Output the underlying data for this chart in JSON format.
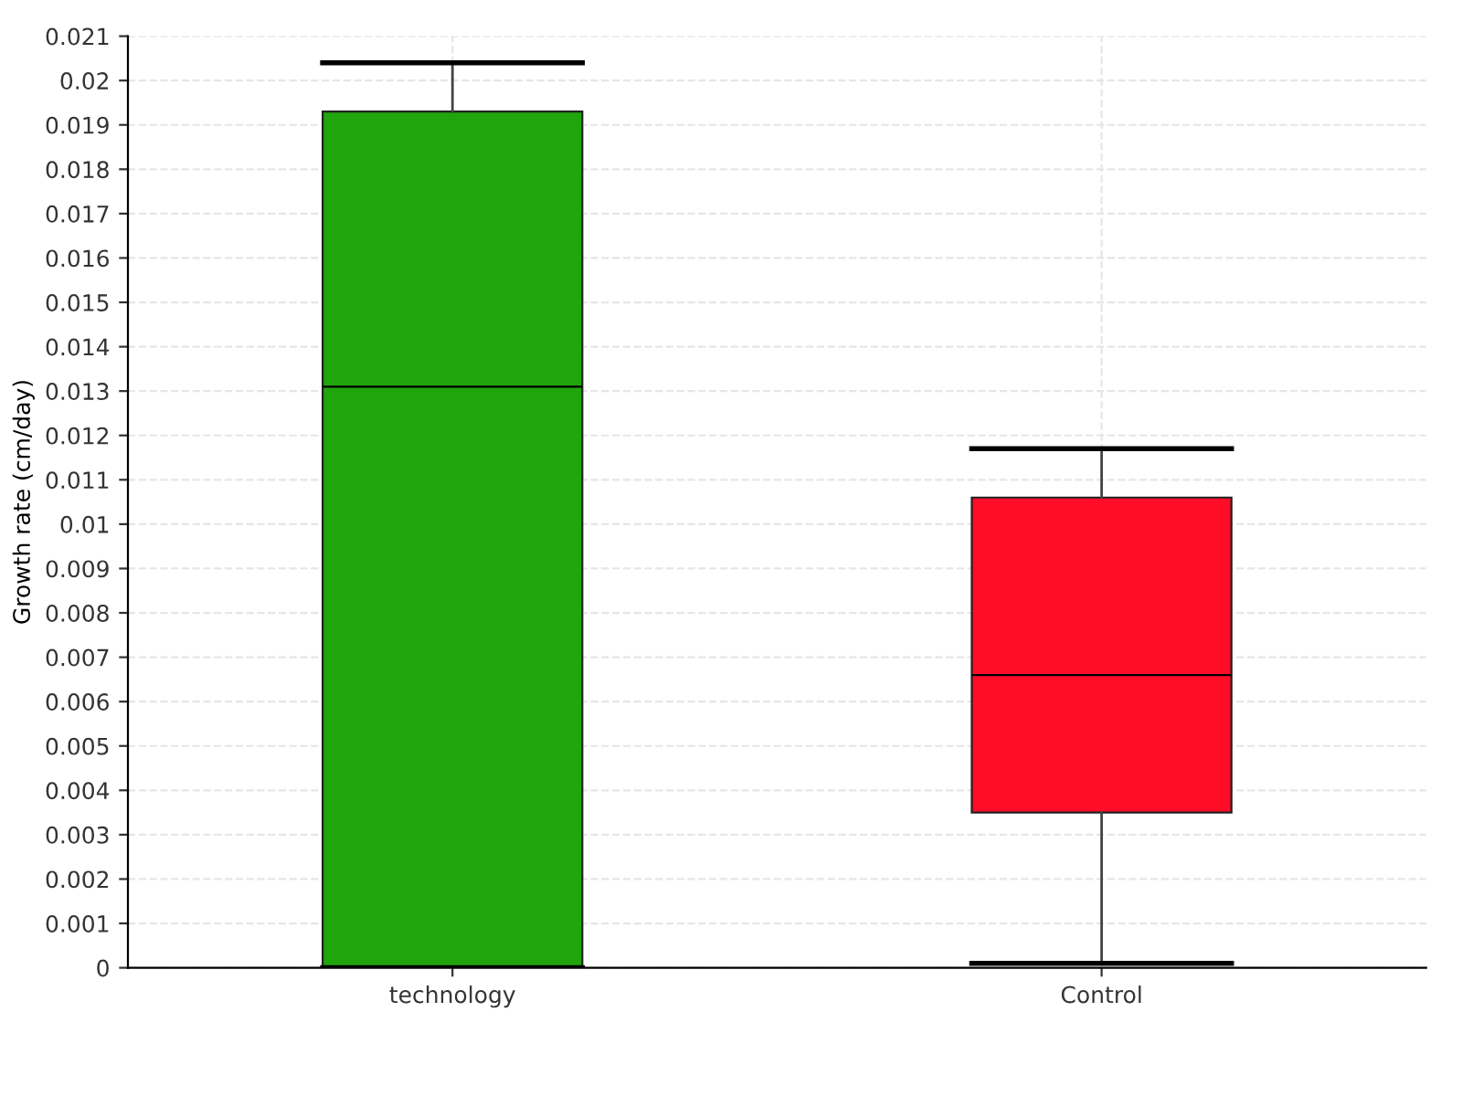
{
  "chart_data": {
    "type": "box",
    "categories": [
      "technology",
      "Control"
    ],
    "ylabel": "Growth rate (cm/day)",
    "colors": [
      "#21a50d",
      "#ff0c28"
    ],
    "boxes": [
      {
        "low": 0,
        "q1": 0,
        "median": 0.0131,
        "q3": 0.0193,
        "high": 0.0204
      },
      {
        "low": 0.0001,
        "q1": 0.0035,
        "median": 0.0066,
        "q3": 0.0106,
        "high": 0.0117
      }
    ],
    "ylim": [
      0,
      0.021
    ],
    "yticks": [
      0,
      0.001,
      0.002,
      0.003,
      0.004,
      0.005,
      0.006,
      0.007,
      0.008,
      0.009,
      0.01,
      0.011,
      0.012,
      0.013,
      0.014,
      0.015,
      0.016,
      0.017,
      0.018,
      0.019,
      0.02,
      0.021
    ],
    "grid": true
  }
}
